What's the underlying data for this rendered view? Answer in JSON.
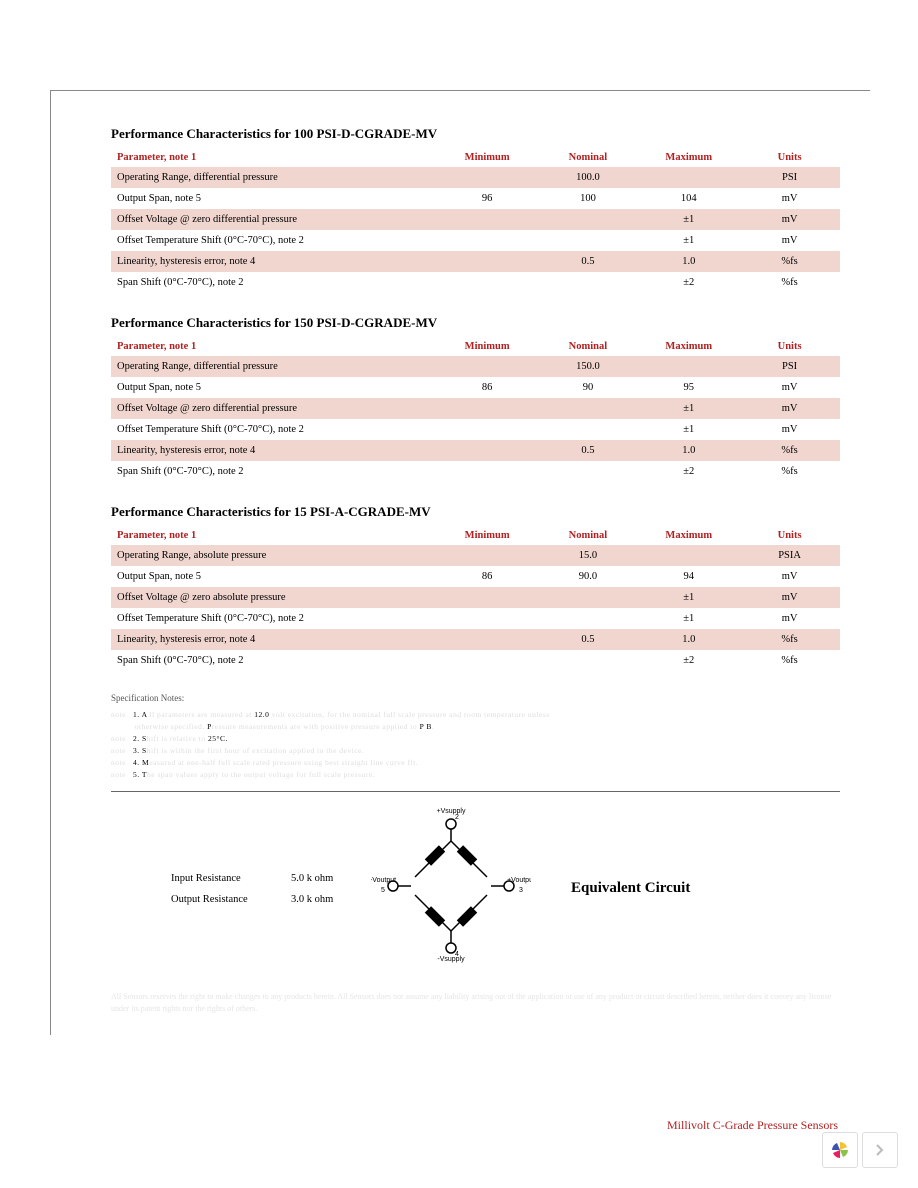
{
  "tables": [
    {
      "title": "Performance Characteristics for 100 PSI-D-CGRADE-MV",
      "headers": [
        "Parameter, note 1",
        "Minimum",
        "Nominal",
        "Maximum",
        "Units"
      ],
      "rows": [
        {
          "shade": true,
          "param": "Operating Range, differential pressure",
          "min": "",
          "nom": "100.0",
          "max": "",
          "unit": "PSI"
        },
        {
          "shade": false,
          "param": "Output Span, note 5",
          "min": "96",
          "nom": "100",
          "max": "104",
          "unit": "mV"
        },
        {
          "shade": true,
          "param": "Offset Voltage @ zero differential pressure",
          "min": "",
          "nom": "",
          "max": "±1",
          "unit": "mV"
        },
        {
          "shade": false,
          "param": "Offset Temperature Shift (0°C-70°C), note 2",
          "min": "",
          "nom": "",
          "max": "±1",
          "unit": "mV"
        },
        {
          "shade": true,
          "param": "Linearity, hysteresis error, note 4",
          "min": "",
          "nom": "0.5",
          "max": "1.0",
          "unit": "%fs"
        },
        {
          "shade": false,
          "param": "Span  Shift (0°C-70°C), note 2",
          "min": "",
          "nom": "",
          "max": "±2",
          "unit": "%fs"
        }
      ]
    },
    {
      "title": "Performance Characteristics for 150 PSI-D-CGRADE-MV",
      "headers": [
        "Parameter, note 1",
        "Minimum",
        "Nominal",
        "Maximum",
        "Units"
      ],
      "rows": [
        {
          "shade": true,
          "param": "Operating Range, differential pressure",
          "min": "",
          "nom": "150.0",
          "max": "",
          "unit": "PSI"
        },
        {
          "shade": false,
          "param": "Output Span, note 5",
          "min": "86",
          "nom": "90",
          "max": "95",
          "unit": "mV"
        },
        {
          "shade": true,
          "param": "Offset Voltage @ zero differential pressure",
          "min": "",
          "nom": "",
          "max": "±1",
          "unit": "mV"
        },
        {
          "shade": false,
          "param": "Offset Temperature Shift (0°C-70°C), note 2",
          "min": "",
          "nom": "",
          "max": "±1",
          "unit": "mV"
        },
        {
          "shade": true,
          "param": "Linearity, hysteresis error, note 4",
          "min": "",
          "nom": "0.5",
          "max": "1.0",
          "unit": "%fs"
        },
        {
          "shade": false,
          "param": "Span  Shift (0°C-70°C), note 2",
          "min": "",
          "nom": "",
          "max": "±2",
          "unit": "%fs"
        }
      ]
    },
    {
      "title": "Performance Characteristics for 15 PSI-A-CGRADE-MV",
      "headers": [
        "Parameter, note 1",
        "Minimum",
        "Nominal",
        "Maximum",
        "Units"
      ],
      "rows": [
        {
          "shade": true,
          "param": "Operating Range, absolute pressure",
          "min": "",
          "nom": "15.0",
          "max": "",
          "unit": "PSIA"
        },
        {
          "shade": false,
          "param": "Output Span, note 5",
          "min": "86",
          "nom": "90.0",
          "max": "94",
          "unit": "mV"
        },
        {
          "shade": true,
          "param": "Offset Voltage @ zero absolute pressure",
          "min": "",
          "nom": "",
          "max": "±1",
          "unit": "mV"
        },
        {
          "shade": false,
          "param": "Offset Temperature Shift (0°C-70°C), note 2",
          "min": "",
          "nom": "",
          "max": "±1",
          "unit": "mV"
        },
        {
          "shade": true,
          "param": "Linearity, hysteresis error, note 4",
          "min": "",
          "nom": "0.5",
          "max": "1.0",
          "unit": "%fs"
        },
        {
          "shade": false,
          "param": "Span  Shift (0°C-70°C), note 2",
          "min": "",
          "nom": "",
          "max": "±2",
          "unit": "%fs"
        }
      ]
    }
  ],
  "spec_notes_title": "Specification Notes:",
  "notes": {
    "n1_a": "1. A",
    "n1_120": "12.0",
    "n1_p": "P",
    "n1_pb": "P   B",
    "n2": "2. S",
    "n2_25c": "25°C.",
    "n3": "3. S",
    "n4": "4. M",
    "n5": "5. T"
  },
  "resistance": {
    "input_label": "Input Resistance",
    "input_value": "5.0 k ohm",
    "output_label": "Output Resistance",
    "output_value": "3.0 k ohm"
  },
  "circuit": {
    "title": "Equivalent Circuit",
    "top": "+Vsupply",
    "top_pin": "2",
    "bottom": "-Vsupply",
    "bottom_pin": "4",
    "left": "-Voutput",
    "left_pin": "5",
    "right": "+Voutput",
    "right_pin": "3"
  },
  "disclaimer": "All Sensors reserves the right to make changes to any products herein. All Sensors does not assume any liability arising out of the application or use of any product or circuit described herein, neither does it convey any license under its patent rights nor the rights of others.",
  "footer": "Millivolt C-Grade Pressure Sensors",
  "colors": {
    "header_text": "#b22222",
    "row_shade": "#f0d6ce",
    "border": "#888888"
  }
}
